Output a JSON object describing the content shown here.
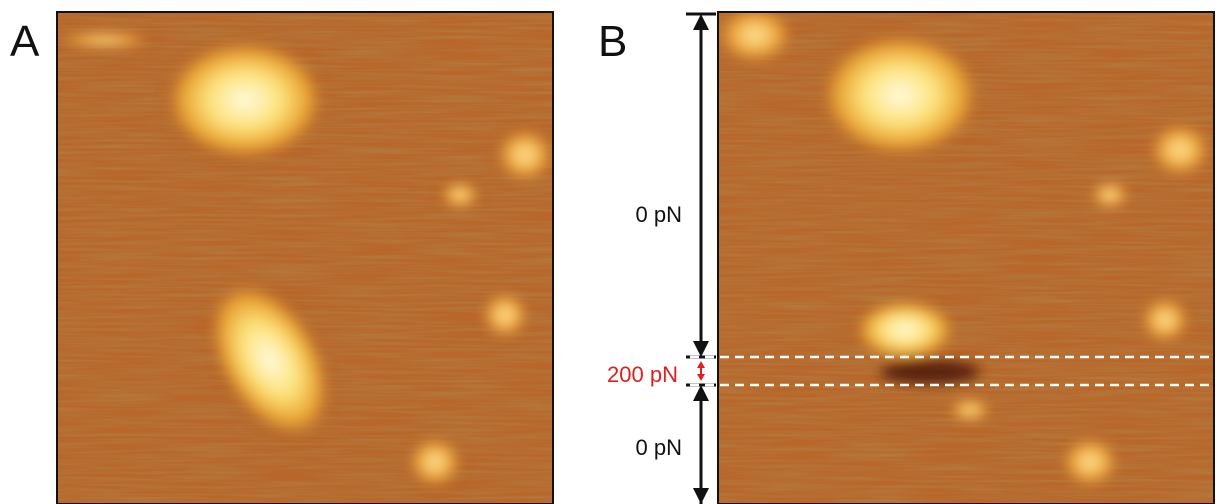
{
  "panels": [
    {
      "label": "A"
    },
    {
      "label": "B",
      "annotations": [
        "0 pN",
        "200 pN",
        "0 pN"
      ]
    }
  ]
}
